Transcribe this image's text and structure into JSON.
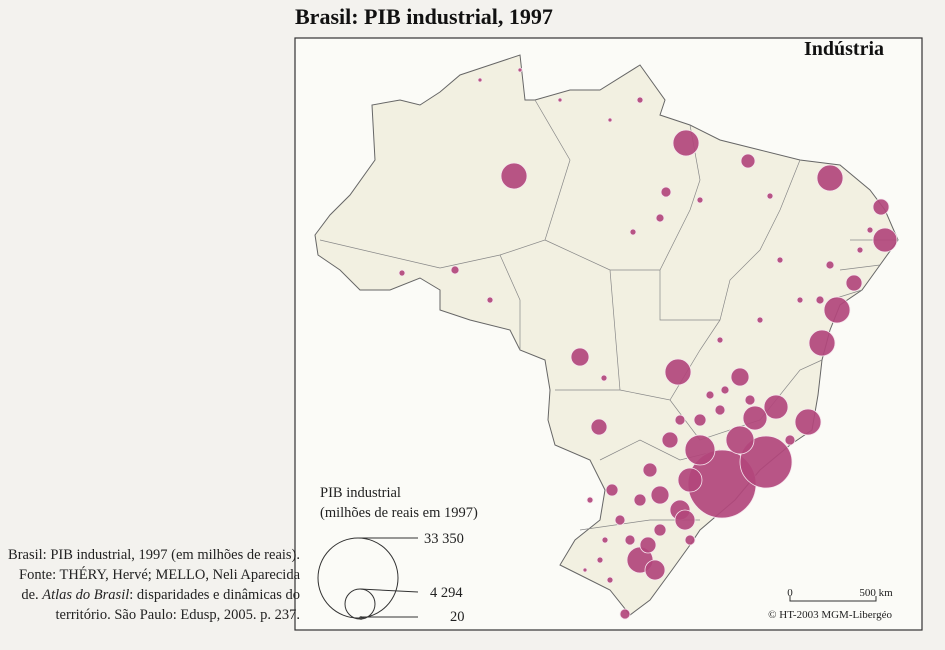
{
  "header": {
    "title": "Brasil: PIB industrial, 1997"
  },
  "map": {
    "title": "Indústria",
    "legend": {
      "title": "PIB industrial",
      "subtitle": "(milhões de reais em 1997)",
      "items": [
        "33 350",
        "4 294",
        "20"
      ]
    },
    "scale": {
      "start": "0",
      "end": "500 km"
    },
    "credit": "© HT-2003 MGM-Libergéo"
  },
  "caption": {
    "before": "Brasil: PIB industrial, 1997 (em milhões de reais). Fonte: THÉRY, Hervé; MELLO, Neli Aparecida de. ",
    "italic": "Atlas do Brasil",
    "after": ": disparidades e dinâmicas do território. São Paulo: Edusp, 2005. p. 237."
  }
}
